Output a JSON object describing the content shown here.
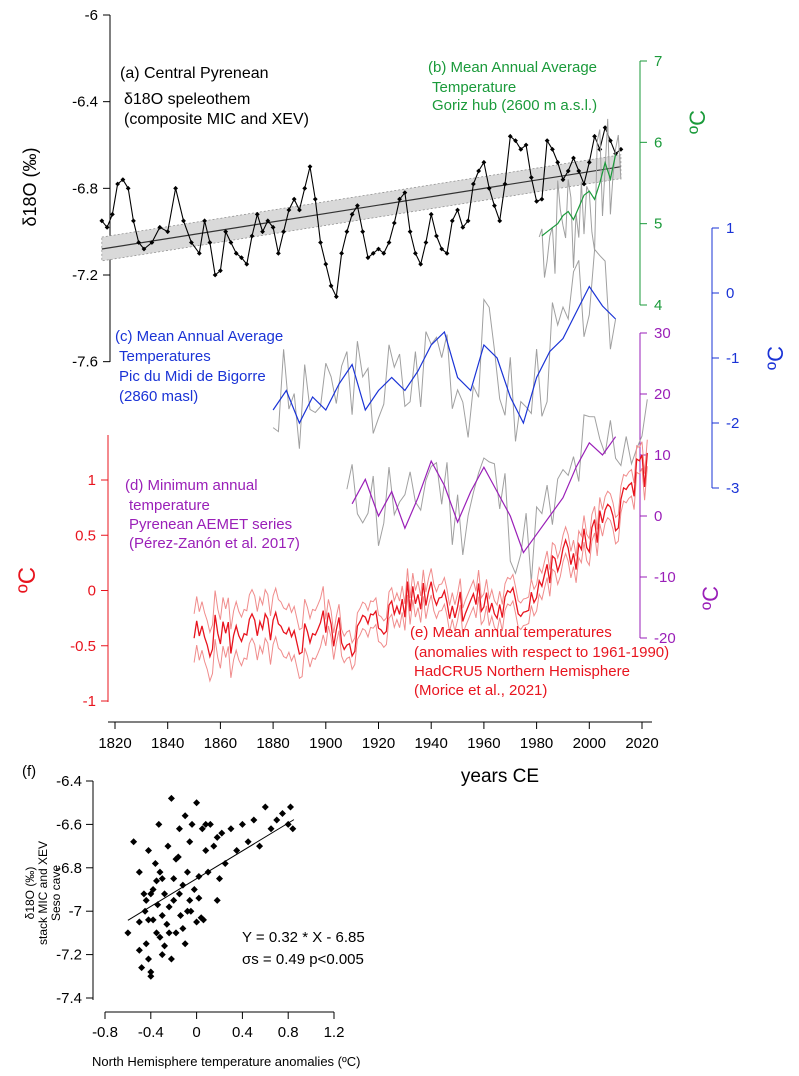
{
  "colors": {
    "black": "#000000",
    "green": "#1a9a3a",
    "blue": "#1a33d6",
    "purple": "#9a1fb8",
    "red": "#e8141e",
    "pink": "#f08c8c",
    "gray": "#a0a0a0",
    "band": "#d9d9d9"
  },
  "chart_data": [
    {
      "id": "top-stack",
      "type": "line",
      "x_axis": {
        "label": "years CE",
        "range": [
          1815,
          2025
        ],
        "ticks": [
          1820,
          1840,
          1860,
          1880,
          1900,
          1920,
          1940,
          1960,
          1980,
          2000,
          2020
        ]
      },
      "panels": [
        {
          "id": "a",
          "caption": [
            "(a) Central Pyrenean",
            "δ18O speleothem",
            "(composite MIC and XEV)"
          ],
          "y_label": "δ18O (‰)",
          "y_axis": {
            "range": [
              -6.0,
              -7.8
            ],
            "ticks": [
              -6.0,
              -6.4,
              -6.8,
              -7.2,
              -7.6
            ],
            "tick_labels": [
              "-6",
              "-6.4",
              "-6.8",
              "-7.2",
              "-7.6"
            ]
          },
          "series": {
            "name": "δ18O speleothem",
            "x": [
              1815,
              1817,
              1819,
              1821,
              1823,
              1825,
              1827,
              1829,
              1831,
              1834,
              1837,
              1840,
              1843,
              1846,
              1849,
              1852,
              1854,
              1856,
              1858,
              1860,
              1862,
              1864,
              1866,
              1868,
              1870,
              1872,
              1874,
              1876,
              1878,
              1880,
              1882,
              1884,
              1886,
              1888,
              1890,
              1892,
              1894,
              1896,
              1898,
              1900,
              1902,
              1904,
              1906,
              1908,
              1910,
              1912,
              1914,
              1916,
              1918,
              1920,
              1922,
              1924,
              1926,
              1928,
              1930,
              1932,
              1934,
              1936,
              1938,
              1940,
              1942,
              1944,
              1946,
              1948,
              1950,
              1952,
              1954,
              1956,
              1958,
              1960,
              1962,
              1964,
              1966,
              1968,
              1970,
              1972,
              1974,
              1976,
              1978,
              1980,
              1982,
              1984,
              1986,
              1988,
              1990,
              1992,
              1994,
              1996,
              1998,
              2000,
              2002,
              2004,
              2006,
              2008,
              2010,
              2012
            ],
            "y": [
              -6.95,
              -6.98,
              -6.92,
              -6.78,
              -6.76,
              -6.8,
              -6.95,
              -7.05,
              -7.08,
              -7.05,
              -6.98,
              -7.0,
              -6.8,
              -6.95,
              -7.05,
              -7.1,
              -6.95,
              -7.05,
              -7.2,
              -7.18,
              -7.0,
              -7.05,
              -7.1,
              -7.12,
              -7.15,
              -7.02,
              -6.92,
              -7.0,
              -6.95,
              -6.98,
              -7.1,
              -7.0,
              -6.9,
              -6.85,
              -6.9,
              -6.8,
              -6.7,
              -6.85,
              -7.05,
              -7.15,
              -7.25,
              -7.3,
              -7.1,
              -7.0,
              -6.92,
              -6.88,
              -7.0,
              -7.12,
              -7.1,
              -7.08,
              -7.1,
              -7.05,
              -6.96,
              -6.85,
              -6.82,
              -7.0,
              -7.1,
              -7.15,
              -7.05,
              -6.92,
              -7.02,
              -7.08,
              -7.1,
              -6.95,
              -6.9,
              -6.98,
              -6.95,
              -6.78,
              -6.72,
              -6.68,
              -6.8,
              -6.88,
              -6.95,
              -6.78,
              -6.56,
              -6.58,
              -6.62,
              -6.6,
              -6.75,
              -6.86,
              -6.85,
              -6.58,
              -6.62,
              -6.68,
              -6.76,
              -6.72,
              -6.66,
              -6.72,
              -6.78,
              -6.68,
              -6.56,
              -6.62,
              -6.52,
              -6.58,
              -6.64,
              -6.62
            ]
          },
          "trend": {
            "x": [
              1815,
              2012
            ],
            "y": [
              -7.08,
              -6.7
            ]
          }
        },
        {
          "id": "b",
          "caption": [
            "(b) Mean Annual Average",
            "Temperature",
            "Goriz hub (2600 m a.s.l.)"
          ],
          "y_label": "ºC",
          "y_axis": {
            "range": [
              4,
              7
            ],
            "ticks": [
              4,
              5,
              6,
              7
            ]
          },
          "series": {
            "name": "Goriz hub",
            "x": [
              1982,
              1984,
              1986,
              1988,
              1990,
              1992,
              1994,
              1996,
              1998,
              2000,
              2002,
              2004,
              2006,
              2008,
              2010
            ],
            "y": [
              4.85,
              4.9,
              4.95,
              5.0,
              5.1,
              5.15,
              5.05,
              5.2,
              5.35,
              5.4,
              5.3,
              5.5,
              5.75,
              5.55,
              5.85
            ]
          }
        },
        {
          "id": "c",
          "caption": [
            "(c) Mean Annual Average",
            "Temperatures",
            "Pic du Midi de Bigorre",
            "(2860 masl)"
          ],
          "y_label": "ºC",
          "y_axis": {
            "range": [
              -3,
              1
            ],
            "ticks": [
              1,
              0,
              -1,
              -2,
              -3
            ]
          },
          "series": {
            "name": "Pic du Midi de Bigorre",
            "x": [
              1880,
              1885,
              1890,
              1895,
              1900,
              1905,
              1910,
              1915,
              1920,
              1925,
              1930,
              1935,
              1940,
              1945,
              1950,
              1955,
              1960,
              1965,
              1970,
              1975,
              1980,
              1985,
              1990,
              1995,
              2000,
              2005,
              2010
            ],
            "y": [
              -1.8,
              -1.5,
              -2.0,
              -1.6,
              -1.8,
              -1.4,
              -1.1,
              -1.8,
              -1.5,
              -1.3,
              -1.5,
              -1.2,
              -0.8,
              -0.6,
              -1.3,
              -1.5,
              -0.8,
              -1.0,
              -1.6,
              -2.0,
              -1.3,
              -0.9,
              -0.7,
              -0.3,
              0.1,
              -0.2,
              -0.4
            ]
          }
        },
        {
          "id": "d",
          "caption": [
            "(d) Minimum annual",
            "temperature",
            "Pyrenean AEMET series",
            "(Pérez-Zanón et al. 2017)"
          ],
          "y_label": "ºC",
          "y_axis": {
            "range": [
              -20,
              30
            ],
            "ticks": [
              30,
              20,
              10,
              0,
              -10,
              -20
            ]
          },
          "series": {
            "name": "Pyrenean AEMET series",
            "x": [
              1910,
              1915,
              1920,
              1925,
              1930,
              1935,
              1940,
              1945,
              1950,
              1955,
              1960,
              1965,
              1970,
              1975,
              1980,
              1985,
              1990,
              1995,
              2000,
              2005,
              2010
            ],
            "y": [
              2,
              6,
              0,
              4,
              -2,
              3,
              9,
              5,
              -1,
              4,
              8,
              4,
              0,
              -6,
              -3,
              0,
              3,
              8,
              12,
              10,
              13
            ]
          }
        },
        {
          "id": "e",
          "caption": [
            "(e) Mean annual temperatures",
            "(anomalies with respect to 1961-1990)",
            "HadCRU5 Northern Hemisphere",
            "(Morice et al., 2021)"
          ],
          "y_label": "ºC",
          "y_axis": {
            "range": [
              -1,
              1.2
            ],
            "ticks": [
              1,
              0.5,
              0,
              -0.5,
              -1
            ]
          },
          "series": {
            "name": "HadCRU5 Northern Hemisphere",
            "x": [
              1850,
              1855,
              1860,
              1865,
              1870,
              1875,
              1880,
              1885,
              1890,
              1895,
              1900,
              1905,
              1910,
              1915,
              1920,
              1925,
              1930,
              1935,
              1940,
              1945,
              1950,
              1955,
              1960,
              1965,
              1970,
              1975,
              1980,
              1985,
              1990,
              1995,
              2000,
              2005,
              2010,
              2015,
              2020
            ],
            "y": [
              -0.4,
              -0.45,
              -0.35,
              -0.45,
              -0.3,
              -0.42,
              -0.3,
              -0.5,
              -0.45,
              -0.35,
              -0.3,
              -0.4,
              -0.45,
              -0.3,
              -0.3,
              -0.2,
              -0.1,
              -0.05,
              0.05,
              -0.05,
              -0.15,
              -0.1,
              -0.1,
              -0.2,
              -0.1,
              -0.15,
              0.05,
              0.15,
              0.3,
              0.35,
              0.45,
              0.6,
              0.7,
              0.9,
              1.1
            ]
          }
        }
      ]
    },
    {
      "id": "f",
      "type": "scatter",
      "panel_label": "(f)",
      "xlabel": "North Hemisphere temperature anomalies (ºC)",
      "ylabel": [
        "δ18O (‰)",
        "stack MIC and XEV",
        "Seso cave"
      ],
      "xlim": [
        -0.8,
        1.2
      ],
      "ylim": [
        -7.4,
        -6.4
      ],
      "x_ticks": [
        -0.8,
        -0.4,
        0,
        0.4,
        0.8,
        1.2
      ],
      "y_ticks": [
        -6.4,
        -6.6,
        -6.8,
        -7,
        -7.2,
        -7.4
      ],
      "points": [
        [
          -0.6,
          -7.1
        ],
        [
          -0.55,
          -6.68
        ],
        [
          -0.5,
          -7.05
        ],
        [
          -0.5,
          -6.82
        ],
        [
          -0.48,
          -7.26
        ],
        [
          -0.46,
          -6.92
        ],
        [
          -0.45,
          -7.0
        ],
        [
          -0.44,
          -7.15
        ],
        [
          -0.42,
          -6.72
        ],
        [
          -0.42,
          -7.22
        ],
        [
          -0.4,
          -6.92
        ],
        [
          -0.4,
          -7.28
        ],
        [
          -0.38,
          -7.04
        ],
        [
          -0.36,
          -6.78
        ],
        [
          -0.35,
          -7.1
        ],
        [
          -0.34,
          -6.97
        ],
        [
          -0.33,
          -6.6
        ],
        [
          -0.32,
          -7.12
        ],
        [
          -0.3,
          -6.85
        ],
        [
          -0.3,
          -7.02
        ],
        [
          -0.28,
          -6.92
        ],
        [
          -0.26,
          -7.06
        ],
        [
          -0.25,
          -6.7
        ],
        [
          -0.24,
          -6.98
        ],
        [
          -0.22,
          -6.48
        ],
        [
          -0.22,
          -7.22
        ],
        [
          -0.2,
          -6.85
        ],
        [
          -0.2,
          -6.95
        ],
        [
          -0.18,
          -7.1
        ],
        [
          -0.16,
          -6.75
        ],
        [
          -0.15,
          -6.92
        ],
        [
          -0.14,
          -7.02
        ],
        [
          -0.12,
          -6.88
        ],
        [
          -0.1,
          -6.56
        ],
        [
          -0.1,
          -7.15
        ],
        [
          -0.08,
          -6.82
        ],
        [
          -0.06,
          -6.95
        ],
        [
          -0.05,
          -7.0
        ],
        [
          -0.04,
          -6.6
        ],
        [
          -0.02,
          -6.9
        ],
        [
          0,
          -6.5
        ],
        [
          0,
          -7.05
        ],
        [
          0.02,
          -6.94
        ],
        [
          0.04,
          -7.03
        ],
        [
          0.05,
          -6.62
        ],
        [
          0.06,
          -7.04
        ],
        [
          0.08,
          -6.72
        ],
        [
          0.1,
          -6.82
        ],
        [
          0.12,
          -6.6
        ],
        [
          0.15,
          -6.7
        ],
        [
          0.18,
          -6.95
        ],
        [
          0.2,
          -6.85
        ],
        [
          0.22,
          -6.64
        ],
        [
          0.25,
          -6.78
        ],
        [
          0.3,
          -6.62
        ],
        [
          0.35,
          -6.72
        ],
        [
          0.4,
          -6.6
        ],
        [
          0.45,
          -6.68
        ],
        [
          0.5,
          -6.58
        ],
        [
          0.55,
          -6.7
        ],
        [
          0.6,
          -6.52
        ],
        [
          0.65,
          -6.62
        ],
        [
          0.7,
          -6.58
        ],
        [
          0.75,
          -6.55
        ],
        [
          0.8,
          -6.6
        ],
        [
          0.82,
          -6.52
        ],
        [
          0.84,
          -6.62
        ],
        [
          -0.44,
          -6.95
        ],
        [
          -0.35,
          -6.86
        ],
        [
          -0.28,
          -7.16
        ],
        [
          -0.18,
          -6.76
        ],
        [
          -0.08,
          -7.0
        ],
        [
          0.02,
          -6.84
        ],
        [
          -0.5,
          -7.18
        ],
        [
          -0.4,
          -7.3
        ],
        [
          -0.3,
          -7.2
        ],
        [
          -0.15,
          -6.62
        ],
        [
          -0.12,
          -7.08
        ],
        [
          0.08,
          -6.6
        ],
        [
          0.18,
          -6.66
        ],
        [
          -0.42,
          -7.04
        ],
        [
          -0.38,
          -6.9
        ],
        [
          -0.32,
          -6.82
        ],
        [
          -0.24,
          -7.1
        ],
        [
          -0.06,
          -6.68
        ]
      ],
      "fit": {
        "slope": 0.32,
        "intercept": -6.85,
        "x_range": [
          -0.6,
          0.85
        ]
      },
      "annotation": [
        "Y = 0.32 * X - 6.85",
        "σs = 0.49   p<0.005"
      ]
    }
  ]
}
